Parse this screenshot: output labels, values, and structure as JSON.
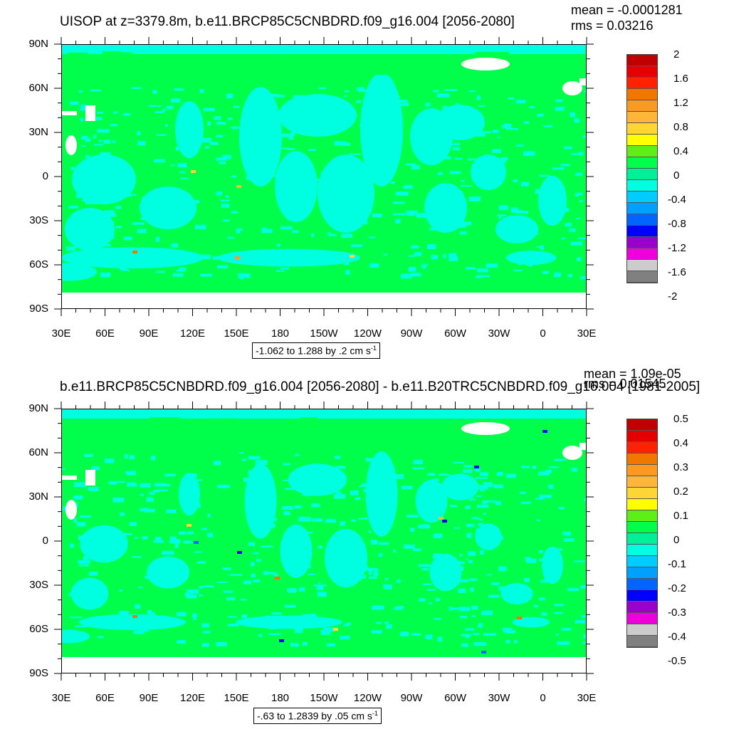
{
  "colors": {
    "green": "#00ff4a",
    "cyan": "#00ffe0",
    "land": "#ffffff"
  },
  "chart_data": [
    {
      "type": "heatmap",
      "title": "UISOP at z=3379.8m, b.e11.BRCP85C5CNBDRD.f09_g16.004 [2056-2080]",
      "stats": {
        "mean": "mean = -0.0001281",
        "rms": "rms = 0.03216"
      },
      "x_ticks": [
        "30E",
        "60E",
        "90E",
        "120E",
        "150E",
        "180",
        "150W",
        "120W",
        "90W",
        "60W",
        "30W",
        "0",
        "30E"
      ],
      "y_ticks": [
        "90N",
        "60N",
        "30N",
        "0",
        "30S",
        "60S",
        "90S"
      ],
      "colorbar": {
        "labels": [
          "2",
          "1.6",
          "1.2",
          "0.8",
          "0.4",
          "0",
          "-0.4",
          "-0.8",
          "-1.2",
          "-1.6",
          "-2"
        ],
        "colors": [
          "#c00000",
          "#e50000",
          "#ff2200",
          "#f07800",
          "#fb9a22",
          "#ffb63a",
          "#ffd633",
          "#ffff00",
          "#5ef016",
          "#00ff4a",
          "#00f09a",
          "#00ffe0",
          "#00ccff",
          "#00a0ff",
          "#0066ff",
          "#0000ff",
          "#9900cc",
          "#ee00dd",
          "#cccccc",
          "#808080"
        ]
      },
      "contour_info": "-1.062 to 1.288 by .2 cm s",
      "contour_sup": "-1"
    },
    {
      "type": "heatmap",
      "title": "b.e11.BRCP85C5CNBDRD.f09_g16.004 [2056-2080] - b.e11.B20TRC5CNBDRD.f09_g16.004 [1981-2005]",
      "stats": {
        "mean": "mean = 1.09e-05",
        "rms": "rms = 0.01545"
      },
      "x_ticks": [
        "30E",
        "60E",
        "90E",
        "120E",
        "150E",
        "180",
        "150W",
        "120W",
        "90W",
        "60W",
        "30W",
        "0",
        "30E"
      ],
      "y_ticks": [
        "90N",
        "60N",
        "30N",
        "0",
        "30S",
        "60S",
        "90S"
      ],
      "colorbar": {
        "labels": [
          "0.5",
          "0.4",
          "0.3",
          "0.2",
          "0.1",
          "0",
          "-0.1",
          "-0.2",
          "-0.3",
          "-0.4",
          "-0.5"
        ],
        "colors": [
          "#c00000",
          "#e50000",
          "#ff2200",
          "#f07800",
          "#fb9a22",
          "#ffb63a",
          "#ffd633",
          "#ffff00",
          "#5ef016",
          "#00ff4a",
          "#00f09a",
          "#00ffe0",
          "#00ccff",
          "#00a0ff",
          "#0066ff",
          "#0000ff",
          "#9900cc",
          "#ee00dd",
          "#cccccc",
          "#808080"
        ]
      },
      "contour_info": "-.63 to 1.2839 by .05 cm s",
      "contour_sup": "-1"
    }
  ]
}
